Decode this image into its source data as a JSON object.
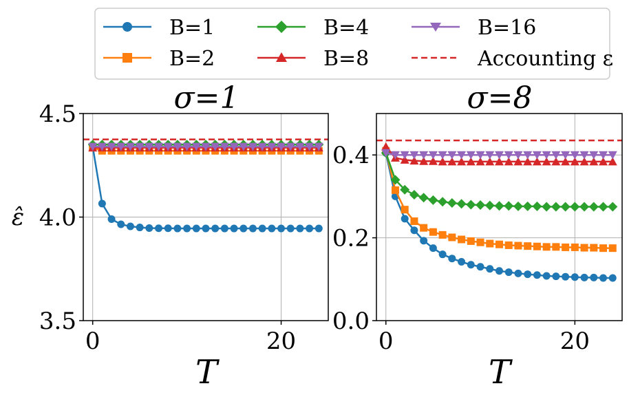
{
  "legend": {
    "entries": [
      {
        "label": "B=1",
        "color": "#1f77b4",
        "marker": "circle"
      },
      {
        "label": "B=2",
        "color": "#ff7f0e",
        "marker": "square"
      },
      {
        "label": "B=4",
        "color": "#2ca02c",
        "marker": "diamond"
      },
      {
        "label": "B=8",
        "color": "#d62728",
        "marker": "triangle-up"
      },
      {
        "label": "B=16",
        "color": "#9467bd",
        "marker": "triangle-down"
      },
      {
        "label": "Accounting ε",
        "color": "#d62728",
        "marker": "dashed-line"
      }
    ]
  },
  "chart_data": [
    {
      "type": "line",
      "title": "σ=1",
      "xlabel": "T",
      "ylabel": "ε̂",
      "xlim": [
        -1,
        25
      ],
      "ylim": [
        3.5,
        4.5
      ],
      "xticks": [
        0,
        20
      ],
      "xtick_labels": [
        "0",
        "20"
      ],
      "yticks": [
        3.5,
        4.0,
        4.5
      ],
      "ytick_labels": [
        "3.5",
        "4.0",
        "4.5"
      ],
      "grid": true,
      "reference_line": {
        "name": "Accounting ε",
        "y": 4.375
      },
      "x": [
        0,
        1,
        2,
        3,
        4,
        5,
        6,
        7,
        8,
        9,
        10,
        11,
        12,
        13,
        14,
        15,
        16,
        17,
        18,
        19,
        20,
        21,
        22,
        23,
        24
      ],
      "series": [
        {
          "name": "B=1",
          "values": [
            4.34,
            4.065,
            3.99,
            3.965,
            3.955,
            3.95,
            3.947,
            3.946,
            3.946,
            3.945,
            3.945,
            3.945,
            3.945,
            3.945,
            3.945,
            3.945,
            3.945,
            3.945,
            3.945,
            3.945,
            3.945,
            3.945,
            3.945,
            3.945,
            3.945
          ]
        },
        {
          "name": "B=2",
          "values": [
            4.335,
            4.32,
            4.32,
            4.32,
            4.32,
            4.32,
            4.32,
            4.32,
            4.32,
            4.32,
            4.32,
            4.32,
            4.32,
            4.32,
            4.32,
            4.32,
            4.32,
            4.32,
            4.32,
            4.32,
            4.32,
            4.32,
            4.32,
            4.32,
            4.32
          ]
        },
        {
          "name": "B=4",
          "values": [
            4.35,
            4.35,
            4.35,
            4.35,
            4.35,
            4.35,
            4.35,
            4.35,
            4.35,
            4.35,
            4.35,
            4.35,
            4.35,
            4.35,
            4.35,
            4.35,
            4.35,
            4.35,
            4.35,
            4.35,
            4.35,
            4.35,
            4.35,
            4.35,
            4.35
          ]
        },
        {
          "name": "B=8",
          "values": [
            4.335,
            4.335,
            4.335,
            4.335,
            4.335,
            4.335,
            4.335,
            4.335,
            4.335,
            4.335,
            4.335,
            4.335,
            4.335,
            4.335,
            4.335,
            4.335,
            4.335,
            4.335,
            4.335,
            4.335,
            4.335,
            4.335,
            4.335,
            4.335,
            4.335
          ]
        },
        {
          "name": "B=16",
          "values": [
            4.34,
            4.34,
            4.34,
            4.34,
            4.34,
            4.34,
            4.34,
            4.34,
            4.34,
            4.34,
            4.34,
            4.34,
            4.34,
            4.34,
            4.34,
            4.34,
            4.34,
            4.34,
            4.34,
            4.34,
            4.34,
            4.34,
            4.34,
            4.34,
            4.34
          ]
        }
      ]
    },
    {
      "type": "line",
      "title": "σ=8",
      "xlabel": "T",
      "ylabel": "",
      "xlim": [
        -1,
        25
      ],
      "ylim": [
        0.0,
        0.5
      ],
      "xticks": [
        0,
        20
      ],
      "xtick_labels": [
        "0",
        "20"
      ],
      "yticks": [
        0.0,
        0.2,
        0.4
      ],
      "ytick_labels": [
        "0.0",
        "0.2",
        "0.4"
      ],
      "grid": true,
      "reference_line": {
        "name": "Accounting ε",
        "y": 0.435
      },
      "x": [
        0,
        1,
        2,
        3,
        4,
        5,
        6,
        7,
        8,
        9,
        10,
        11,
        12,
        13,
        14,
        15,
        16,
        17,
        18,
        19,
        20,
        21,
        22,
        23,
        24
      ],
      "series": [
        {
          "name": "B=1",
          "values": [
            0.405,
            0.3,
            0.246,
            0.218,
            0.193,
            0.175,
            0.16,
            0.15,
            0.142,
            0.135,
            0.13,
            0.125,
            0.12,
            0.117,
            0.114,
            0.112,
            0.11,
            0.108,
            0.107,
            0.106,
            0.105,
            0.104,
            0.104,
            0.103,
            0.103
          ]
        },
        {
          "name": "B=2",
          "values": [
            0.41,
            0.315,
            0.268,
            0.24,
            0.224,
            0.214,
            0.207,
            0.201,
            0.196,
            0.192,
            0.189,
            0.186,
            0.184,
            0.182,
            0.181,
            0.18,
            0.179,
            0.178,
            0.178,
            0.177,
            0.177,
            0.176,
            0.176,
            0.175,
            0.175
          ]
        },
        {
          "name": "B=4",
          "values": [
            0.405,
            0.34,
            0.316,
            0.304,
            0.297,
            0.291,
            0.287,
            0.284,
            0.282,
            0.28,
            0.279,
            0.278,
            0.277,
            0.277,
            0.276,
            0.276,
            0.276,
            0.275,
            0.275,
            0.275,
            0.275,
            0.275,
            0.275,
            0.275,
            0.275
          ]
        },
        {
          "name": "B=8",
          "values": [
            0.42,
            0.393,
            0.388,
            0.386,
            0.385,
            0.385,
            0.384,
            0.384,
            0.384,
            0.384,
            0.384,
            0.384,
            0.384,
            0.384,
            0.384,
            0.384,
            0.384,
            0.384,
            0.384,
            0.384,
            0.384,
            0.384,
            0.384,
            0.384,
            0.384
          ]
        },
        {
          "name": "B=16",
          "values": [
            0.405,
            0.4,
            0.4,
            0.4,
            0.4,
            0.4,
            0.4,
            0.4,
            0.4,
            0.4,
            0.4,
            0.4,
            0.4,
            0.4,
            0.4,
            0.4,
            0.4,
            0.4,
            0.4,
            0.4,
            0.4,
            0.4,
            0.4,
            0.4,
            0.4
          ]
        }
      ]
    }
  ]
}
